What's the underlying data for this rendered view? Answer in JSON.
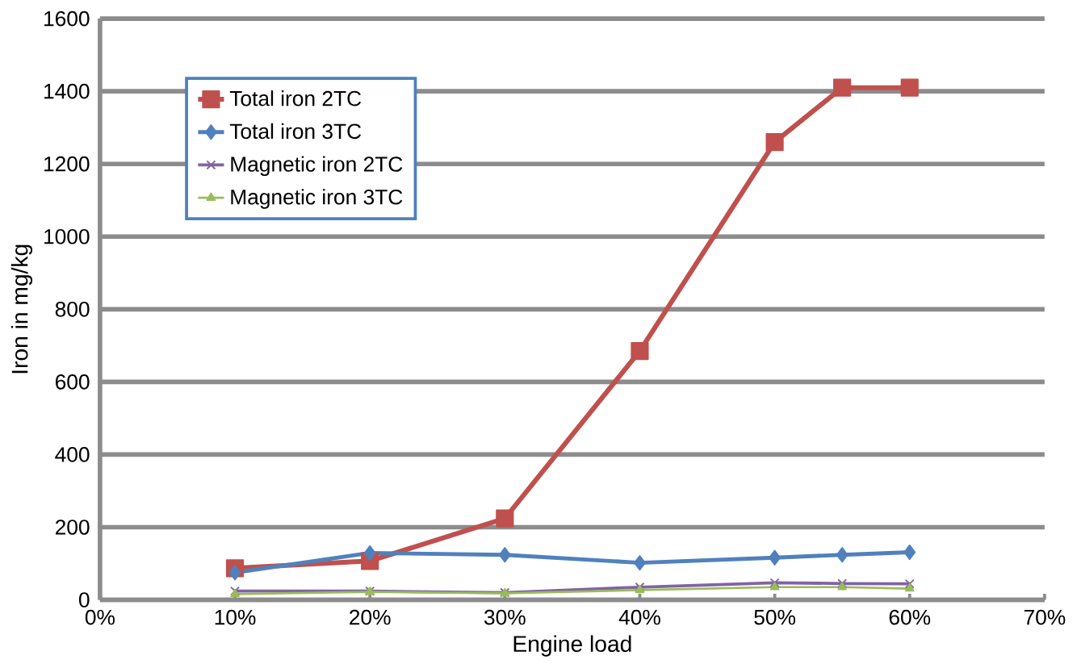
{
  "chart_data": {
    "type": "line",
    "xlabel": "Engine load",
    "ylabel": "Iron in mg/kg",
    "x": [
      10,
      20,
      30,
      40,
      50,
      55,
      60
    ],
    "series": [
      {
        "name": "Total iron 2TC",
        "color": "#c0504d",
        "marker": "square",
        "values": [
          87,
          107,
          224,
          685,
          1260,
          1410,
          1410
        ]
      },
      {
        "name": "Total iron 3TC",
        "color": "#4f81bd",
        "marker": "diamond",
        "values": [
          75,
          129,
          124,
          102,
          116,
          124,
          131
        ]
      },
      {
        "name": "Magnetic iron 2TC",
        "color": "#8064a2",
        "marker": "cross",
        "values": [
          24,
          24,
          20,
          35,
          47,
          45,
          44
        ]
      },
      {
        "name": "Magnetic iron 3TC",
        "color": "#9bbb59",
        "marker": "triangle",
        "values": [
          16,
          22,
          18,
          27,
          35,
          35,
          31
        ]
      }
    ],
    "xlim": [
      0,
      70
    ],
    "xticks": [
      {
        "value": 0,
        "label": "0%"
      },
      {
        "value": 10,
        "label": "10%"
      },
      {
        "value": 20,
        "label": "20%"
      },
      {
        "value": 30,
        "label": "30%"
      },
      {
        "value": 40,
        "label": "40%"
      },
      {
        "value": 50,
        "label": "50%"
      },
      {
        "value": 60,
        "label": "60%"
      },
      {
        "value": 70,
        "label": "70%"
      }
    ],
    "ylim": [
      0,
      1600
    ],
    "yticks": [
      0,
      200,
      400,
      600,
      800,
      1000,
      1200,
      1400,
      1600
    ],
    "grid": "y",
    "legend": "top left",
    "line_style": "solid"
  }
}
